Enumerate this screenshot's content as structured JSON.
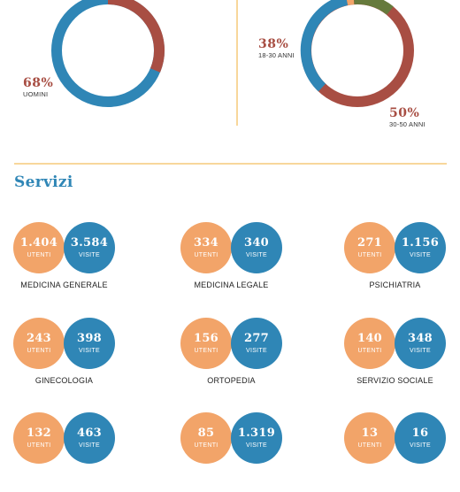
{
  "colors": {
    "blue": "#2f86b6",
    "red": "#a84e43",
    "orange": "#f2a469",
    "olive": "#667a3c",
    "divider": "#f8d79b"
  },
  "gender_chart": {
    "men": {
      "percent": "68%",
      "label": "UOMINI",
      "value": 68
    },
    "women_value": 32
  },
  "age_chart": {
    "group_18_30": {
      "percent": "38%",
      "label": "18-30 ANNI",
      "value": 38
    },
    "group_30_50": {
      "percent": "50%",
      "label": "30-50 ANNI",
      "value": 50
    }
  },
  "services_section": {
    "title": "Servizi",
    "users_label": "UTENTI",
    "visits_label": "VISITE",
    "items": [
      {
        "name": "MEDICINA GENERALE",
        "users": "1.404",
        "visits": "3.584"
      },
      {
        "name": "MEDICINA LEGALE",
        "users": "334",
        "visits": "340"
      },
      {
        "name": "PSICHIATRIA",
        "users": "271",
        "visits": "1.156"
      },
      {
        "name": "GINECOLOGIA",
        "users": "243",
        "visits": "398"
      },
      {
        "name": "ORTOPEDIA",
        "users": "156",
        "visits": "277"
      },
      {
        "name": "SERVIZIO SOCIALE",
        "users": "140",
        "visits": "348"
      },
      {
        "name": "",
        "users": "132",
        "visits": "463"
      },
      {
        "name": "",
        "users": "85",
        "visits": "1.319"
      },
      {
        "name": "",
        "users": "13",
        "visits": "16"
      }
    ]
  }
}
